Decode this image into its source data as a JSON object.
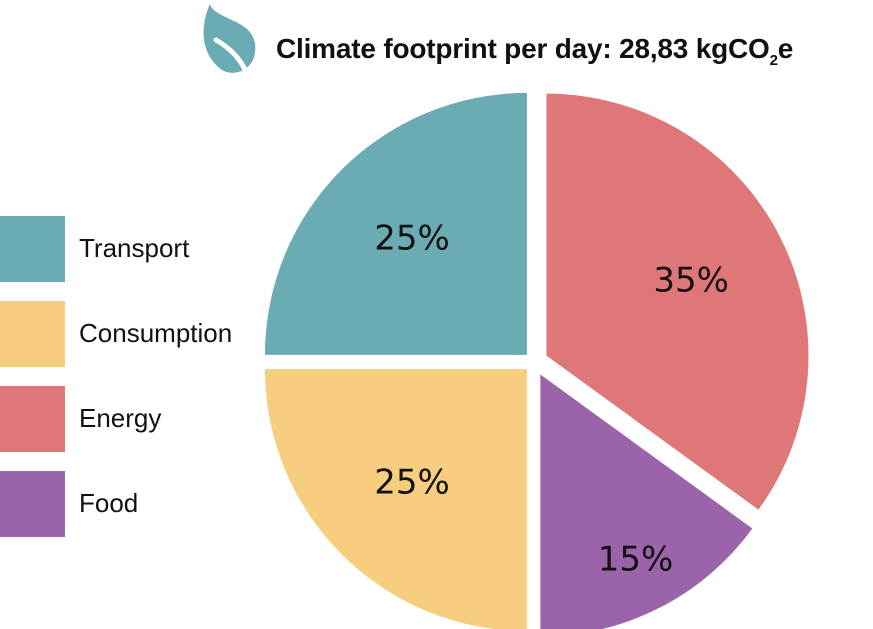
{
  "header": {
    "icon": "leaf-icon",
    "title_prefix": "Climate footprint per day: 28,83 kgCO",
    "title_subscript": "2",
    "title_suffix": "e"
  },
  "chart_data": {
    "type": "pie",
    "title": "Climate footprint per day: 28,83 kgCO2e",
    "legend_position": "left",
    "slices": [
      {
        "name": "Transport",
        "value": 25,
        "label": "25%",
        "color": "#6aabb4"
      },
      {
        "name": "Consumption",
        "value": 25,
        "label": "25%",
        "color": "#f7cd80"
      },
      {
        "name": "Energy",
        "value": 35,
        "label": "35%",
        "color": "#df7677"
      },
      {
        "name": "Food",
        "value": 15,
        "label": "15%",
        "color": "#9b63a9"
      }
    ]
  },
  "colors": {
    "transport": "#6aabb4",
    "consumption": "#f7cd80",
    "energy": "#df7677",
    "food": "#9b63a9",
    "leaf": "#6aabb4"
  }
}
